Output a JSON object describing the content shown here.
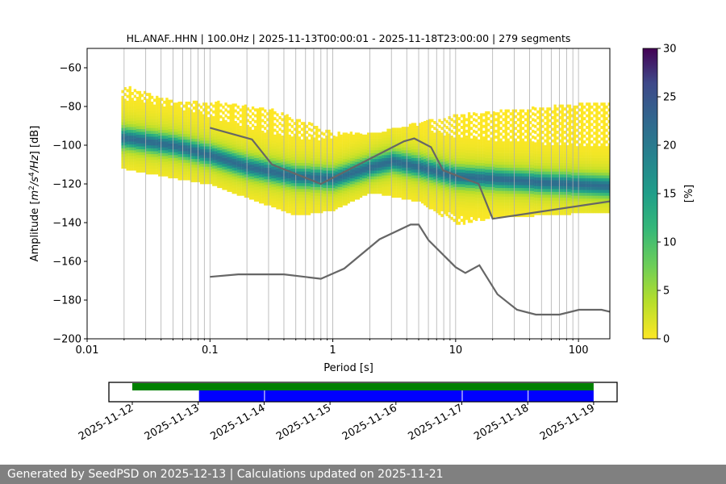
{
  "chart_data": [
    {
      "type": "heatmap",
      "title": "HL.ANAF..HHN | 100.0Hz | 2025-11-13T00:00:01 - 2025-11-18T23:00:00 | 279 segments",
      "xlabel": "Period [s]",
      "ylabel": "Amplitude [m²/s⁴/Hz] [dB]",
      "xscale": "log",
      "xlim": [
        0.01,
        180
      ],
      "ylim": [
        -200,
        -50
      ],
      "xticks": [
        {
          "v": 0.01,
          "label": "0.01"
        },
        {
          "v": 0.1,
          "label": "0.1"
        },
        {
          "v": 1,
          "label": "1"
        },
        {
          "v": 10,
          "label": "10"
        },
        {
          "v": 100,
          "label": "100"
        }
      ],
      "yticks": [
        -200,
        -180,
        -160,
        -140,
        -120,
        -100,
        -80,
        -60
      ],
      "grid": "vertical minor and major on x",
      "colorbar": {
        "label": "[%]",
        "range": [
          0,
          30
        ],
        "ticks": [
          0,
          5,
          10,
          15,
          20,
          25,
          30
        ],
        "colormap": "viridis_r"
      },
      "psd_mode": [
        [
          0.02,
          -97
        ],
        [
          0.05,
          -101
        ],
        [
          0.1,
          -106
        ],
        [
          0.2,
          -112
        ],
        [
          0.5,
          -117
        ],
        [
          1,
          -118
        ],
        [
          2,
          -112
        ],
        [
          3,
          -109
        ],
        [
          5,
          -112
        ],
        [
          10,
          -117
        ],
        [
          20,
          -118
        ],
        [
          50,
          -120
        ],
        [
          180,
          -122
        ]
      ],
      "psd_upper": [
        [
          0.02,
          -70
        ],
        [
          0.05,
          -78
        ],
        [
          0.1,
          -78
        ],
        [
          0.3,
          -82
        ],
        [
          1,
          -94
        ],
        [
          2,
          -95
        ],
        [
          5,
          -89
        ],
        [
          10,
          -85
        ],
        [
          50,
          -81
        ],
        [
          180,
          -78
        ]
      ],
      "psd_lower": [
        [
          0.02,
          -112
        ],
        [
          0.1,
          -120
        ],
        [
          0.5,
          -136
        ],
        [
          1,
          -133
        ],
        [
          2,
          -124
        ],
        [
          5,
          -129
        ],
        [
          10,
          -141
        ],
        [
          20,
          -137
        ],
        [
          180,
          -134
        ]
      ],
      "series": [
        {
          "values": [
            [
              0.1,
              -91
            ],
            [
              0.22,
              -97
            ],
            [
              0.32,
              -110
            ],
            [
              0.8,
              -120
            ],
            [
              3.8,
              -98
            ],
            [
              4.6,
              -96.5
            ],
            [
              6.3,
              -101
            ],
            [
              7.9,
              -113
            ],
            [
              15.4,
              -120
            ],
            [
              20,
              -138
            ],
            [
              180,
              -129
            ]
          ]
        },
        {
          "values": [
            [
              0.1,
              -168
            ],
            [
              0.17,
              -166.7
            ],
            [
              0.4,
              -166.7
            ],
            [
              0.8,
              -169
            ],
            [
              1.24,
              -163.7
            ],
            [
              2.4,
              -148.6
            ],
            [
              4.3,
              -141
            ],
            [
              5,
              -141
            ],
            [
              6,
              -149
            ],
            [
              10,
              -163
            ],
            [
              12,
              -166
            ],
            [
              15.6,
              -162
            ],
            [
              21.9,
              -177
            ],
            [
              31.6,
              -185
            ],
            [
              45,
              -187.5
            ],
            [
              70,
              -187.5
            ],
            [
              101,
              -185
            ],
            [
              154,
              -185
            ],
            [
              180,
              -186
            ]
          ]
        }
      ],
      "line_color": "#666666"
    },
    {
      "type": "timeline",
      "xticks": [
        "2025-11-12",
        "2025-11-13",
        "2025-11-14",
        "2025-11-15",
        "2025-11-16",
        "2025-11-17",
        "2025-11-18",
        "2025-11-19"
      ],
      "available": {
        "color": "#008000",
        "start": "2025-11-12",
        "end": "2025-11-19"
      },
      "processed": {
        "color": "#0000ff",
        "segments": [
          [
            "2025-11-13",
            "2025-11-14"
          ],
          [
            "2025-11-14",
            "2025-11-17"
          ],
          [
            "2025-11-17",
            "2025-11-18"
          ],
          [
            "2025-11-18",
            "2025-11-19"
          ]
        ]
      }
    }
  ],
  "footer": "Generated by SeedPSD on 2025-12-13 | Calculations updated on 2025-11-21"
}
